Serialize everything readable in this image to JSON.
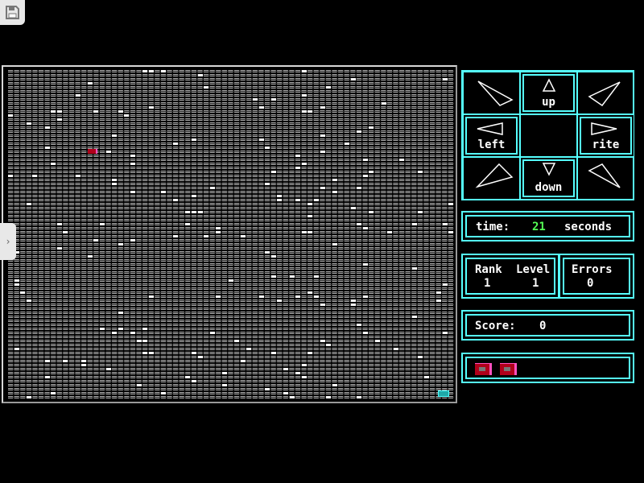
{
  "toolbar": {
    "save_icon": "floppy-disk-icon"
  },
  "side_tab": {
    "icon": "chevron-right-icon",
    "glyph": "›"
  },
  "controls": {
    "up": "up",
    "down": "down",
    "left": "left",
    "right": "rite"
  },
  "time": {
    "label": "time:",
    "value": "21",
    "unit": "seconds",
    "value_color": "#55ff55"
  },
  "stats": {
    "rank_label": "Rank",
    "rank_value": "1",
    "level_label": "Level",
    "level_value": "1",
    "errors_label": "Errors",
    "errors_value": "0"
  },
  "score": {
    "label": "Score:",
    "value": "0"
  },
  "lives": {
    "count": 2
  },
  "colors": {
    "panel_border": "#55ffff",
    "player": "#b0001a",
    "goal": "#1fa8a8"
  }
}
